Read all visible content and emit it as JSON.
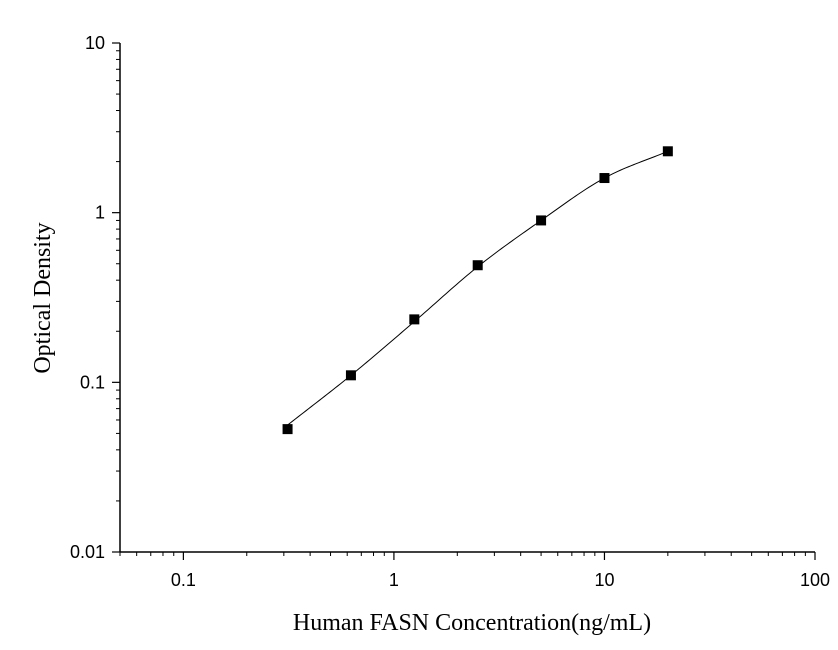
{
  "chart_data": {
    "type": "scatter",
    "xlabel": "Human FASN Concentration(ng/mL)",
    "ylabel": "Optical Density",
    "xscale": "log",
    "yscale": "log",
    "xlim": [
      0.05,
      100
    ],
    "ylim": [
      0.01,
      10
    ],
    "x_ticks": [
      "0.1",
      "1",
      "10",
      "100"
    ],
    "y_ticks": [
      "0.01",
      "0.1",
      "1",
      "10"
    ],
    "grid": false,
    "legend": "none",
    "series": [
      {
        "x": [
          0.3125,
          0.625,
          1.25,
          2.5,
          5,
          10,
          20
        ],
        "y": [
          0.053,
          0.11,
          0.235,
          0.49,
          0.9,
          1.6,
          2.3
        ]
      }
    ],
    "fit_curve": {
      "x": [
        0.3125,
        0.625,
        1.25,
        2.5,
        5,
        10,
        20
      ],
      "y": [
        0.056,
        0.11,
        0.228,
        0.48,
        0.9,
        1.6,
        2.3
      ]
    },
    "colors": {
      "marker": "#000000",
      "line": "#000000",
      "axis": "#000000"
    }
  }
}
